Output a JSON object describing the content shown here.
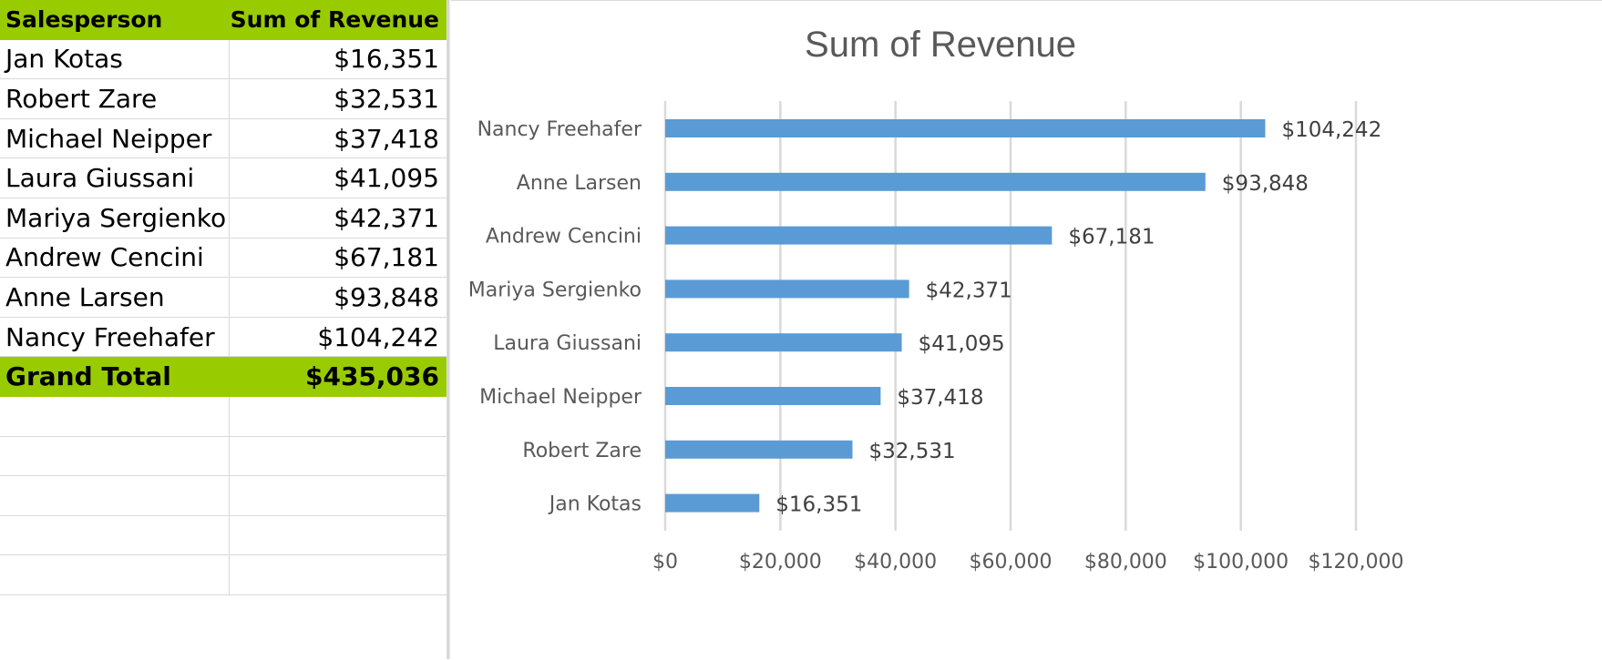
{
  "table": {
    "header": {
      "col1": "Salesperson",
      "col2": "Sum of Revenue"
    },
    "rows": [
      {
        "name": "Jan Kotas",
        "value": "$16,351"
      },
      {
        "name": "Robert Zare",
        "value": "$32,531"
      },
      {
        "name": "Michael Neipper",
        "value": "$37,418"
      },
      {
        "name": "Laura Giussani",
        "value": "$41,095"
      },
      {
        "name": "Mariya Sergienko",
        "value": "$42,371"
      },
      {
        "name": "Andrew Cencini",
        "value": "$67,181"
      },
      {
        "name": "Anne Larsen",
        "value": "$93,848"
      },
      {
        "name": "Nancy Freehafer",
        "value": "$104,242"
      }
    ],
    "total": {
      "label": "Grand Total",
      "value": "$435,036"
    },
    "header_color": "#99cc00"
  },
  "chart_data": {
    "type": "bar",
    "orientation": "horizontal",
    "title": "Sum of Revenue",
    "categories": [
      "Nancy Freehafer",
      "Anne Larsen",
      "Andrew Cencini",
      "Mariya Sergienko",
      "Laura Giussani",
      "Michael Neipper",
      "Robert Zare",
      "Jan Kotas"
    ],
    "values": [
      104242,
      93848,
      67181,
      42371,
      41095,
      37418,
      32531,
      16351
    ],
    "data_labels": [
      "$104,242",
      "$93,848",
      "$67,181",
      "$42,371",
      "$41,095",
      "$37,418",
      "$32,531",
      "$16,351"
    ],
    "xlim": [
      0,
      120000
    ],
    "x_ticks": [
      0,
      20000,
      40000,
      60000,
      80000,
      100000,
      120000
    ],
    "x_tick_labels": [
      "$0",
      "$20,000",
      "$40,000",
      "$60,000",
      "$80,000",
      "$100,000",
      "$120,000"
    ],
    "xlabel": "",
    "ylabel": "",
    "grid": true,
    "legend": "none",
    "bar_color": "#5b9bd5",
    "grid_color": "#d9d9d9"
  }
}
